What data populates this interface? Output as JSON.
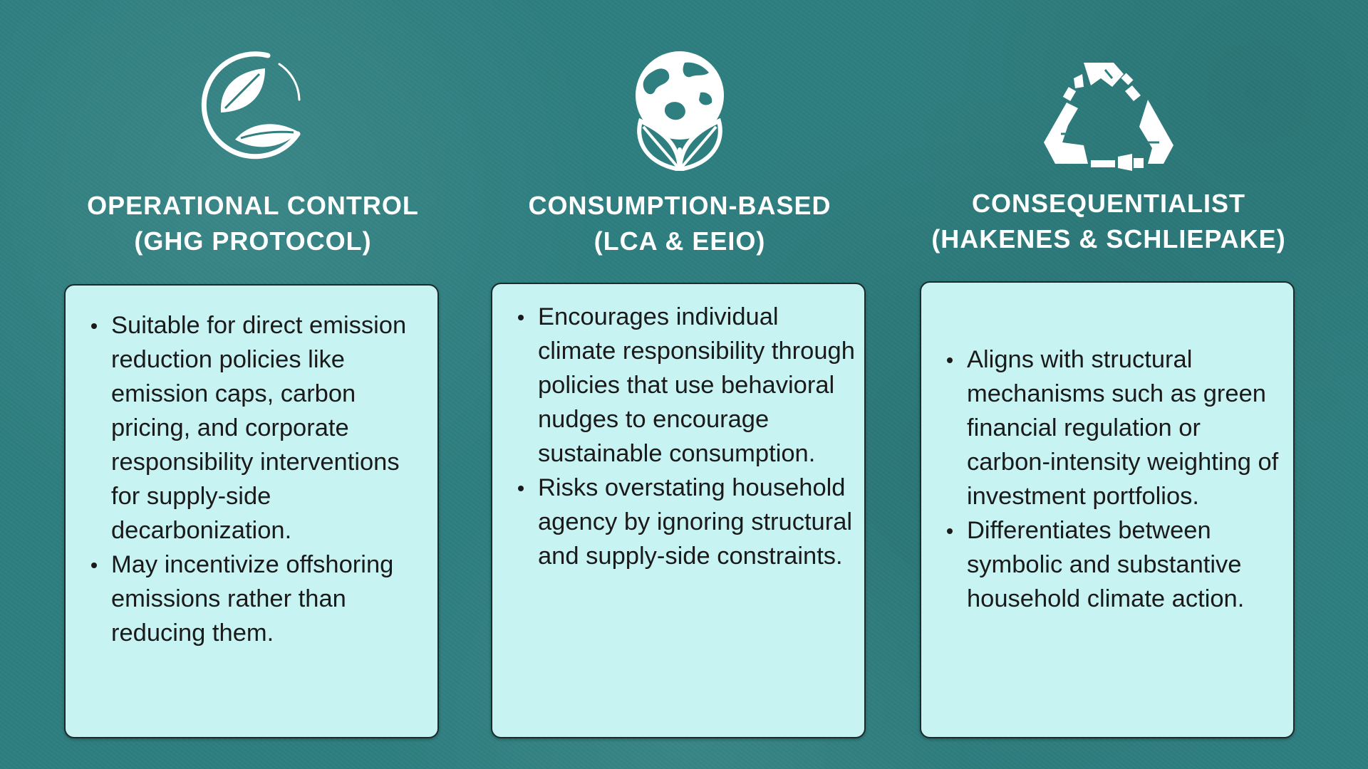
{
  "columns": [
    {
      "icon": "leaf-circle-icon",
      "title_line1": "OPERATIONAL CONTROL",
      "title_line2": "(GHG PROTOCOL)",
      "bullets": [
        "Suitable for direct emission reduction policies like emission caps, carbon pricing, and corporate responsibility interventions for supply-side decarbonization.",
        "May incentivize offshoring emissions rather than reducing them."
      ]
    },
    {
      "icon": "globe-leaves-icon",
      "title_line1": "CONSUMPTION-BASED",
      "title_line2": "(LCA & EEIO)",
      "bullets": [
        "Encourages individual climate responsibility through policies that use behavioral nudges to encourage sustainable consumption.",
        "Risks overstating household agency by ignoring structural and supply-side constraints."
      ]
    },
    {
      "icon": "recycle-bottles-icon",
      "title_line1": "CONSEQUENTIALIST",
      "title_line2": "(HAKENES & SCHLIEPAKE)",
      "bullets": [
        "Aligns with structural mechanisms such as green financial regulation or carbon-intensity weighting of investment portfolios.",
        "Differentiates between symbolic and substantive household climate action."
      ]
    }
  ],
  "colors": {
    "background": "#2f7f80",
    "card": "#c8f3f3",
    "heading": "#ffffff",
    "text": "#1a1a1a"
  }
}
